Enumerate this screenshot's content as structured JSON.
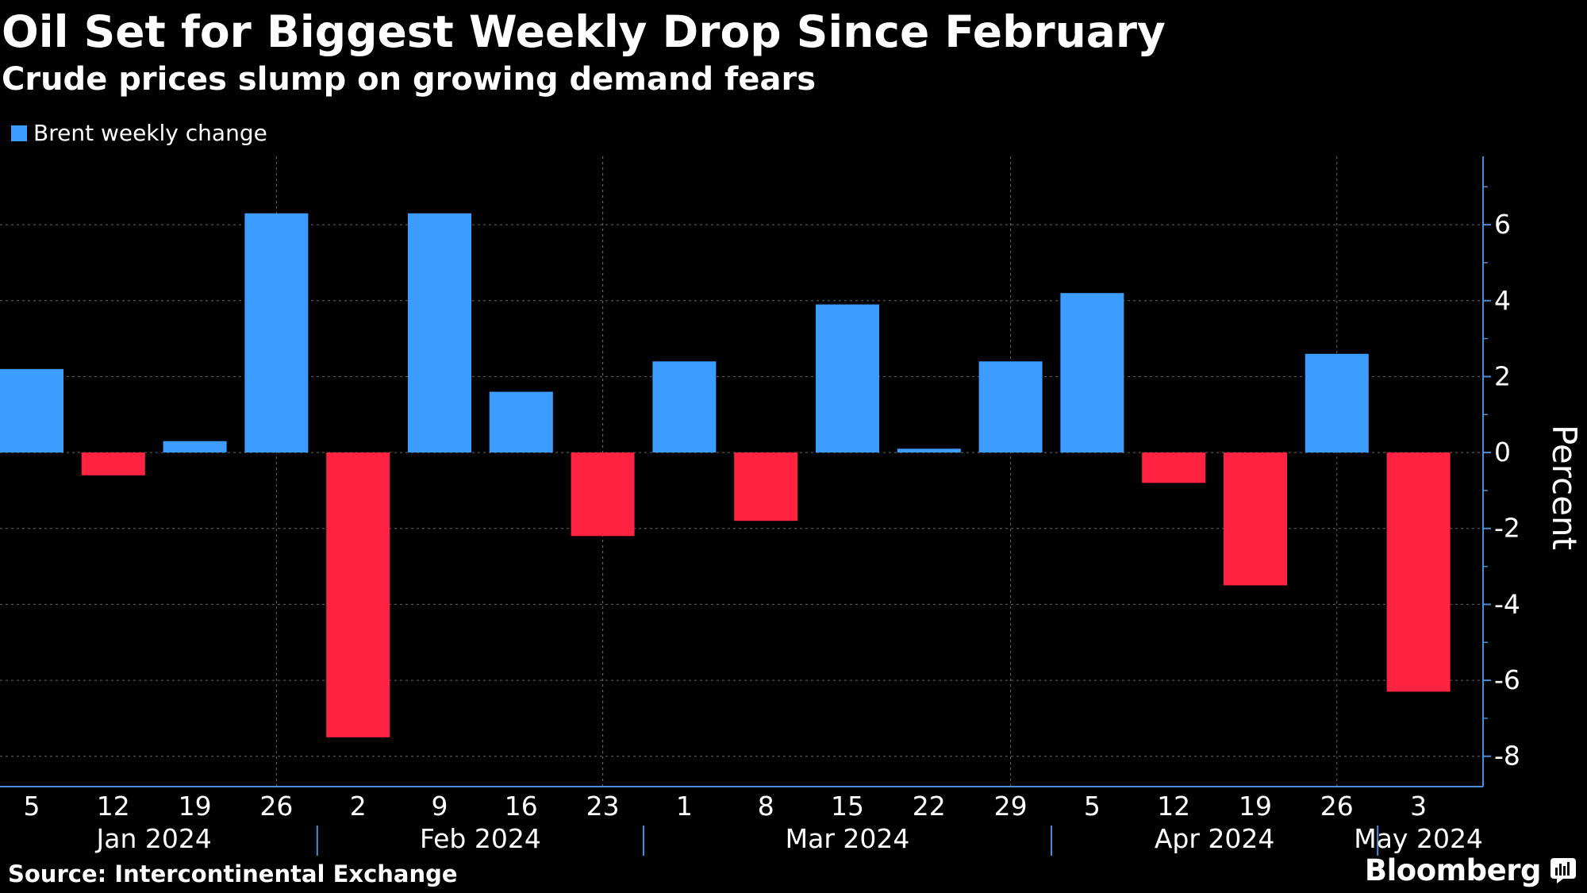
{
  "header": {
    "title": "Oil Set for Biggest Weekly Drop Since February",
    "subtitle": "Crude prices slump on growing demand fears"
  },
  "legend": {
    "label": "Brent weekly change"
  },
  "footer": {
    "source": "Source: Intercontinental Exchange",
    "brand": "Bloomberg"
  },
  "colors": {
    "positive": "#3d9cff",
    "negative": "#ff2241",
    "background": "#000000",
    "axis": "#4c8bd6",
    "grid": "#666666",
    "text": "#ffffff"
  },
  "chart_data": {
    "type": "bar",
    "title": "Oil Set for Biggest Weekly Drop Since February",
    "subtitle": "Crude prices slump on growing demand fears",
    "ylabel": "Percent",
    "ylim": [
      -8.8,
      7.8
    ],
    "yticks": [
      6,
      4,
      2,
      0,
      -2,
      -4,
      -6,
      -8
    ],
    "ytick_labels": [
      "6",
      "4",
      "2",
      "0",
      "-2",
      "-4",
      "-6",
      "-8"
    ],
    "y_axis_side": "right",
    "grid": true,
    "legend_position": "top-left",
    "categories": [
      "5",
      "12",
      "19",
      "26",
      "2",
      "9",
      "16",
      "23",
      "1",
      "8",
      "15",
      "22",
      "29",
      "5",
      "12",
      "19",
      "26",
      "3"
    ],
    "x": [
      "2024-01-05",
      "2024-01-12",
      "2024-01-19",
      "2024-01-26",
      "2024-02-02",
      "2024-02-09",
      "2024-02-16",
      "2024-02-23",
      "2024-03-01",
      "2024-03-08",
      "2024-03-15",
      "2024-03-22",
      "2024-03-29",
      "2024-04-05",
      "2024-04-12",
      "2024-04-19",
      "2024-04-26",
      "2024-05-03"
    ],
    "months": [
      {
        "label": "Jan 2024",
        "start": 0,
        "end": 3
      },
      {
        "label": "Feb 2024",
        "start": 4,
        "end": 7
      },
      {
        "label": "Mar 2024",
        "start": 8,
        "end": 12
      },
      {
        "label": "Apr 2024",
        "start": 13,
        "end": 16
      },
      {
        "label": "May 2024",
        "start": 17,
        "end": 17
      }
    ],
    "series": [
      {
        "name": "Brent weekly change",
        "values": [
          2.2,
          -0.6,
          0.3,
          6.3,
          -7.5,
          6.3,
          1.6,
          -2.2,
          2.4,
          -1.8,
          3.9,
          0.1,
          2.4,
          4.2,
          -0.8,
          -3.5,
          2.6,
          -6.3
        ]
      }
    ]
  }
}
